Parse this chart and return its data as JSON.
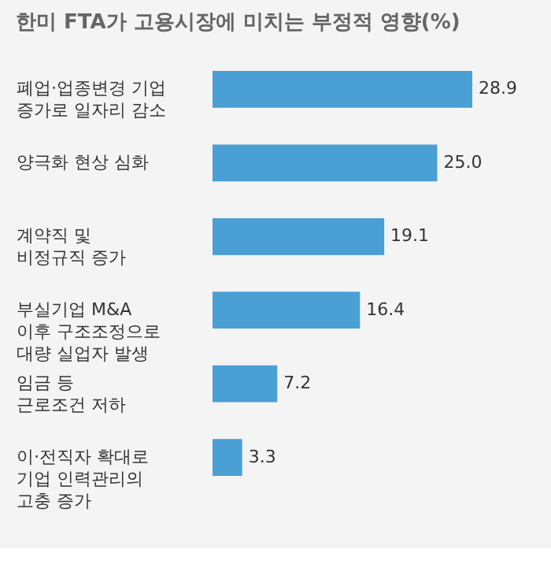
{
  "chart_data": {
    "type": "bar",
    "orientation": "horizontal",
    "title": "한미 FTA가 고용시장에 미치는 부정적 영향(%)",
    "categories": [
      "폐업·업종변경 기업\n증가로 일자리 감소",
      "양극화 현상 심화",
      "계약직 및\n비정규직 증가",
      "부실기업 M&A\n이후 구조조정으로\n대량 실업자 발생",
      "임금 등\n근로조건 저하",
      "이·전직자 확대로\n기업 인력관리의\n고충 증가"
    ],
    "values": [
      28.9,
      25.0,
      19.1,
      16.4,
      7.2,
      3.3
    ],
    "color": "#4a9fd5",
    "value_labels": [
      "28.9",
      "25.0",
      "19.1",
      "16.4",
      "7.2",
      "3.3"
    ]
  }
}
